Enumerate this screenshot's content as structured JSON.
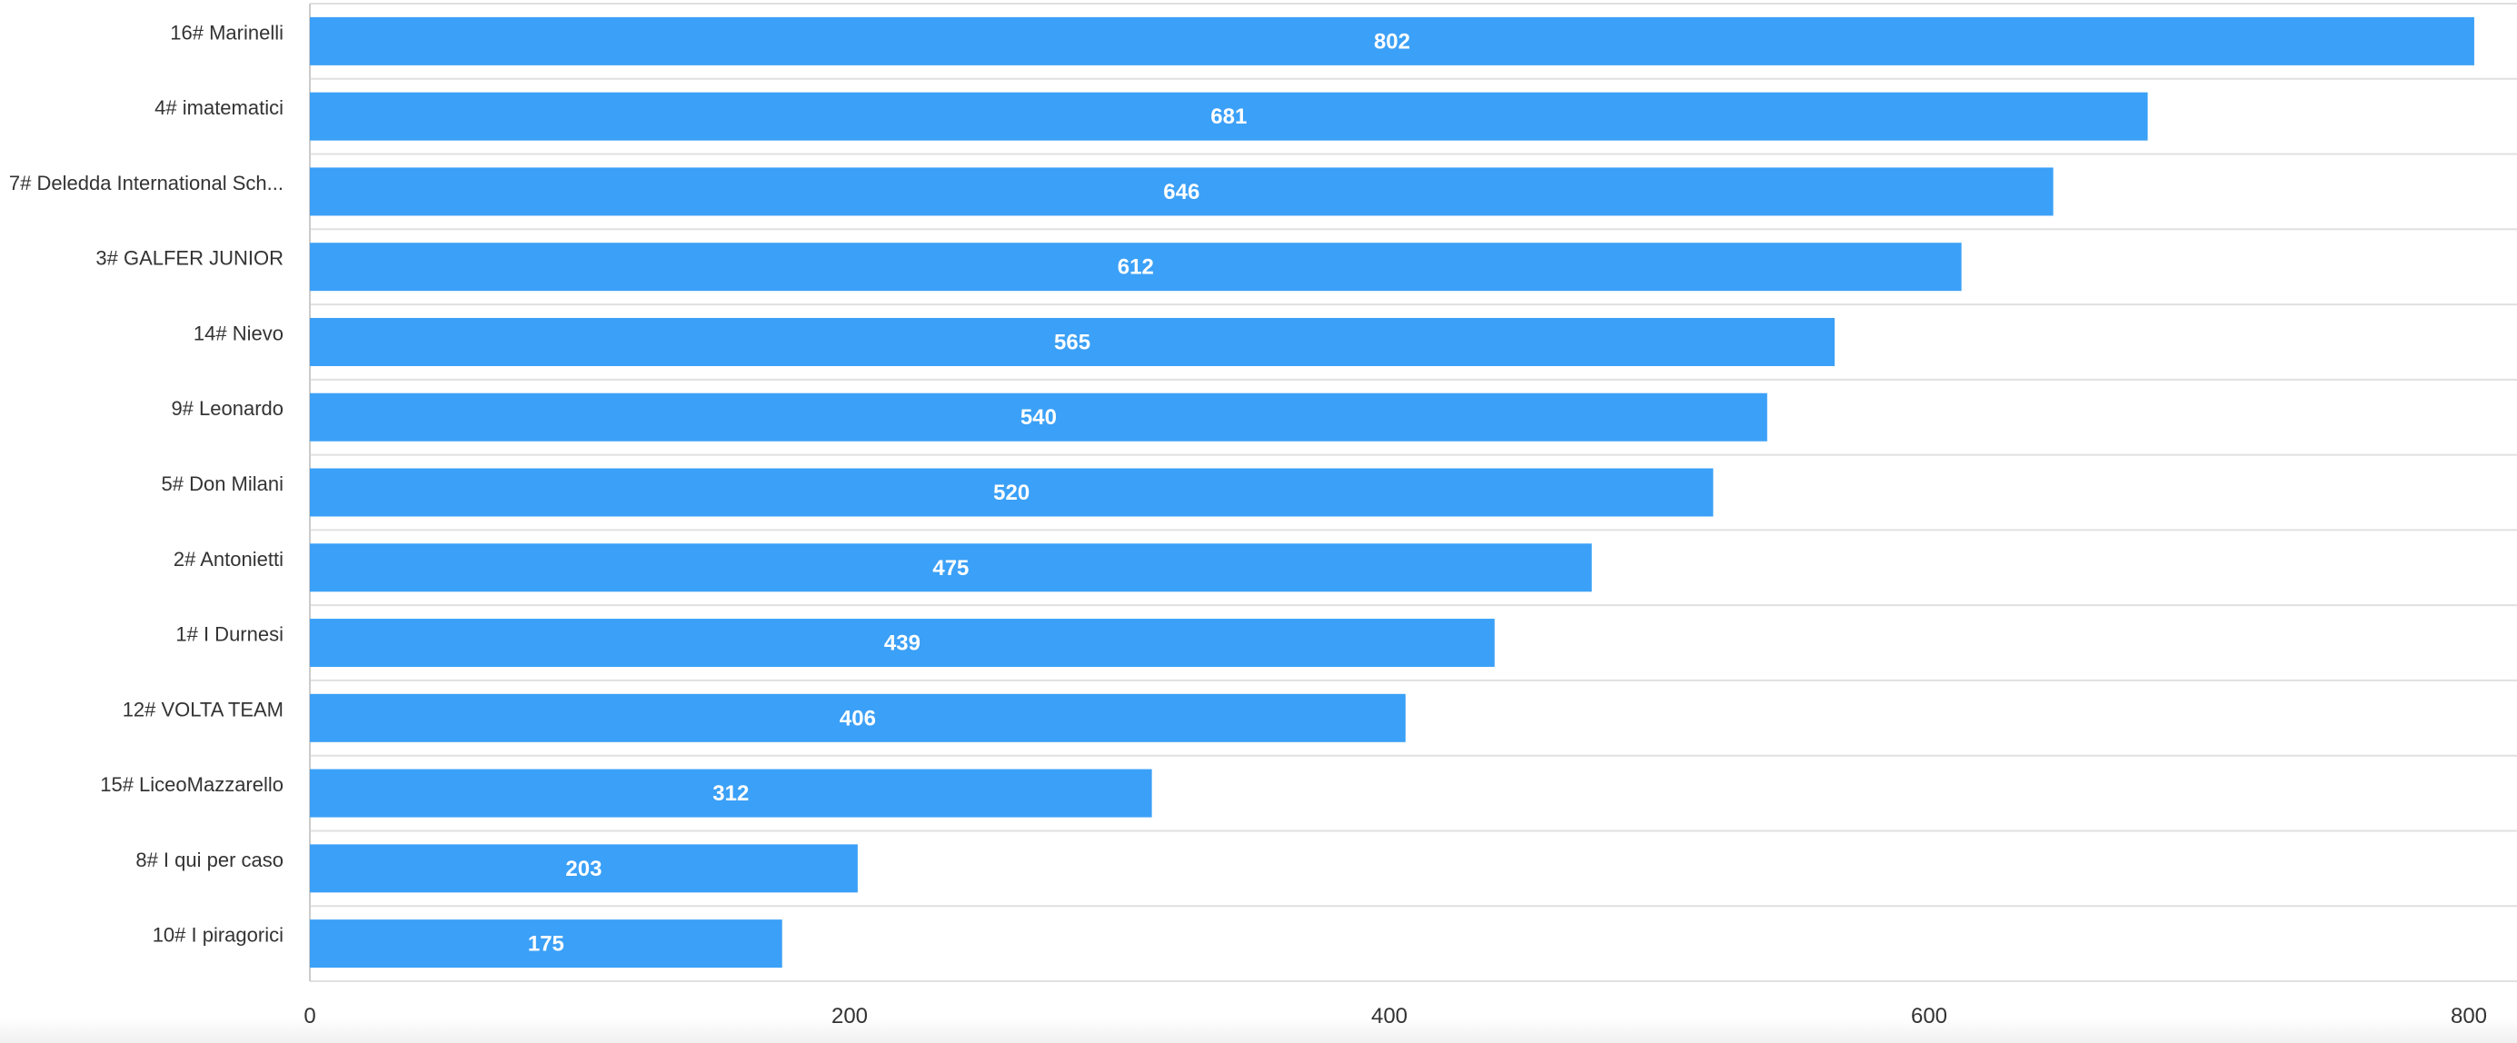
{
  "chart_data": {
    "type": "bar",
    "orientation": "horizontal",
    "categories": [
      "16# Marinelli",
      "4# imatematici",
      "7# Deledda International Sch...",
      "3# GALFER JUNIOR",
      "14# Nievo",
      "9# Leonardo",
      "5# Don Milani",
      "2# Antonietti",
      "1# I Durnesi",
      "12# VOLTA TEAM",
      "15# LiceoMazzarello",
      "8# I qui per caso",
      "10# I piragorici"
    ],
    "values": [
      802,
      681,
      646,
      612,
      565,
      540,
      520,
      475,
      439,
      406,
      312,
      203,
      175
    ],
    "xlim": [
      0,
      820
    ],
    "x_ticks": [
      0,
      200,
      400,
      600,
      800
    ],
    "title": "",
    "xlabel": "",
    "ylabel": "",
    "grid": true,
    "data_labels": true,
    "bar_color": "#3ba0f7",
    "label_color": "#ffffff"
  }
}
